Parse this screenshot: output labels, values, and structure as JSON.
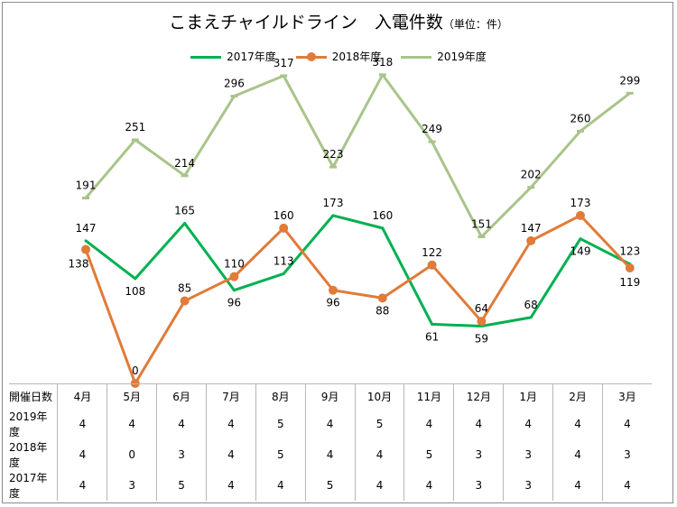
{
  "chart_title": "こまえチャイルドライン　入電件数",
  "chart_title_unit": "（単位：件）",
  "legend": [
    {
      "name": "2017年度",
      "color": "#00b050",
      "marker": "none"
    },
    {
      "name": "2018年度",
      "color": "#e07b39",
      "marker": "circle"
    },
    {
      "name": "2019年度",
      "color": "#a9c48a",
      "marker": "dash"
    }
  ],
  "chart_data": {
    "type": "line",
    "categories": [
      "4月",
      "5月",
      "6月",
      "7月",
      "8月",
      "9月",
      "10月",
      "11月",
      "12月",
      "1月",
      "2月",
      "3月"
    ],
    "series": [
      {
        "name": "2017年度",
        "values": [
          147,
          108,
          165,
          96,
          113,
          173,
          160,
          61,
          59,
          68,
          149,
          123
        ]
      },
      {
        "name": "2018年度",
        "values": [
          138,
          0,
          85,
          110,
          160,
          96,
          88,
          122,
          64,
          147,
          173,
          119
        ]
      },
      {
        "name": "2019年度",
        "values": [
          191,
          251,
          214,
          296,
          317,
          223,
          318,
          249,
          151,
          202,
          260,
          299
        ]
      }
    ],
    "ylim": [
      0,
      330
    ],
    "grid": false,
    "legend_position": "top"
  },
  "table": {
    "header_label": "開催日数",
    "months": [
      "4月",
      "5月",
      "6月",
      "7月",
      "8月",
      "9月",
      "10月",
      "11月",
      "12月",
      "1月",
      "2月",
      "3月"
    ],
    "rows": [
      {
        "label": "2019年度",
        "values": [
          "4",
          "4",
          "4",
          "4",
          "5",
          "4",
          "5",
          "4",
          "4",
          "4",
          "4",
          "4"
        ]
      },
      {
        "label": "2018年度",
        "values": [
          "4",
          "0",
          "3",
          "4",
          "5",
          "4",
          "4",
          "5",
          "3",
          "3",
          "4",
          "3"
        ]
      },
      {
        "label": "2017年度",
        "values": [
          "4",
          "3",
          "5",
          "4",
          "4",
          "5",
          "4",
          "4",
          "3",
          "3",
          "4",
          "4"
        ]
      }
    ]
  }
}
